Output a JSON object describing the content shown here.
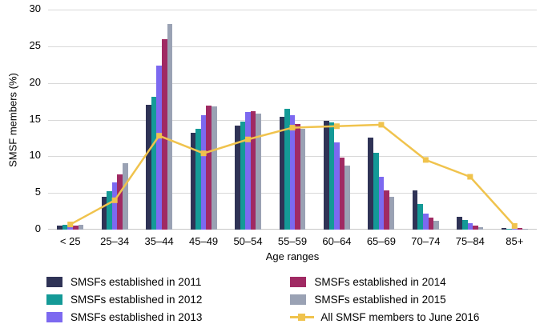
{
  "chart_data": {
    "type": "bar",
    "subtype": "grouped-bars-with-line-overlay",
    "title": "",
    "xlabel": "Age ranges",
    "ylabel": "SMSF members (%)",
    "ylim": [
      0,
      30
    ],
    "yticks": [
      0,
      5,
      10,
      15,
      20,
      25,
      30
    ],
    "grid": true,
    "legend_position": "bottom",
    "categories": [
      "< 25",
      "25–34",
      "35–44",
      "45–49",
      "50–54",
      "55–59",
      "60–64",
      "65–69",
      "70–74",
      "75–84",
      "85+"
    ],
    "series": [
      {
        "name": "SMSFs established in 2011",
        "type": "bar",
        "color": "#2f3356",
        "values": [
          0.5,
          4.5,
          17.0,
          13.2,
          14.2,
          15.4,
          14.8,
          12.5,
          5.3,
          1.8,
          0.2
        ]
      },
      {
        "name": "SMSFs established in 2012",
        "type": "bar",
        "color": "#149a97",
        "values": [
          0.7,
          5.2,
          18.1,
          13.7,
          14.7,
          16.5,
          14.6,
          10.5,
          3.5,
          1.3,
          0.1
        ]
      },
      {
        "name": "SMSFs established in 2013",
        "type": "bar",
        "color": "#7c69f0",
        "values": [
          0.5,
          6.4,
          22.4,
          15.6,
          16.0,
          15.6,
          11.9,
          7.2,
          2.2,
          0.9,
          0.1
        ]
      },
      {
        "name": "SMSFs established in 2014",
        "type": "bar",
        "color": "#a02a63",
        "values": [
          0.6,
          7.5,
          26.0,
          16.9,
          16.1,
          14.4,
          9.8,
          5.3,
          1.6,
          0.5,
          0.2
        ]
      },
      {
        "name": "SMSFs established in 2015",
        "type": "bar",
        "color": "#9aa2b4",
        "values": [
          0.7,
          9.1,
          28.0,
          16.8,
          15.8,
          13.7,
          8.7,
          4.5,
          1.2,
          0.3,
          0.1
        ]
      },
      {
        "name": "All SMSF members to June 2016",
        "type": "line",
        "color": "#f0c34d",
        "values": [
          0.7,
          4.0,
          12.8,
          10.4,
          12.3,
          13.9,
          14.1,
          14.3,
          9.5,
          7.2,
          0.5
        ]
      }
    ],
    "colors": {
      "gridline": "#d9d9d9",
      "baseline": "#c6c6c6",
      "text": "#000000"
    }
  }
}
